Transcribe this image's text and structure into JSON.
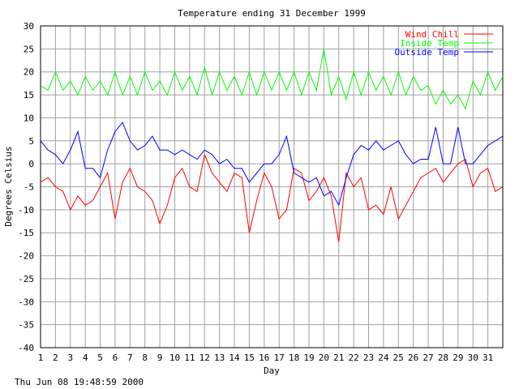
{
  "chart_data": {
    "type": "line",
    "title": "Temperature ending 31 December 1999",
    "xlabel": "Day",
    "ylabel": "Degrees Celsius",
    "xlim": [
      1,
      32
    ],
    "ylim": [
      -40,
      30
    ],
    "grid": true,
    "legend_position": "top-right",
    "x_ticks": [
      "1",
      "2",
      "3",
      "4",
      "5",
      "6",
      "7",
      "8",
      "9",
      "10",
      "11",
      "12",
      "13",
      "14",
      "15",
      "16",
      "17",
      "18",
      "19",
      "20",
      "21",
      "22",
      "23",
      "24",
      "25",
      "26",
      "27",
      "28",
      "29",
      "30",
      "31"
    ],
    "y_ticks": [
      30,
      25,
      20,
      15,
      10,
      5,
      0,
      -5,
      -10,
      -15,
      -20,
      -25,
      -30,
      -35,
      -40
    ],
    "series": [
      {
        "name": "Wind Chill",
        "color": "#ff0000",
        "x": [
          1.0,
          1.5,
          2.0,
          2.5,
          3.0,
          3.5,
          4.0,
          4.5,
          5.0,
          5.5,
          6.0,
          6.5,
          7.0,
          7.5,
          8.0,
          8.5,
          9.0,
          9.5,
          10.0,
          10.5,
          11.0,
          11.5,
          12.0,
          12.5,
          13.0,
          13.5,
          14.0,
          14.5,
          15.0,
          15.5,
          16.0,
          16.5,
          17.0,
          17.5,
          18.0,
          18.5,
          19.0,
          19.5,
          20.0,
          20.5,
          21.0,
          21.5,
          22.0,
          22.5,
          23.0,
          23.5,
          24.0,
          24.5,
          25.0,
          25.5,
          26.0,
          26.5,
          27.0,
          27.5,
          28.0,
          28.5,
          29.0,
          29.5,
          30.0,
          30.5,
          31.0,
          31.5,
          32.0
        ],
        "y": [
          -4,
          -3,
          -5,
          -6,
          -10,
          -7,
          -9,
          -8,
          -5,
          -2,
          -12,
          -4,
          -1,
          -5,
          -6,
          -8,
          -13,
          -9,
          -3,
          -1,
          -5,
          -6,
          2,
          -2,
          -4,
          -6,
          -2,
          -3,
          -15,
          -8,
          -2,
          -5,
          -12,
          -10,
          -1,
          -2,
          -8,
          -6,
          -3,
          -7,
          -17,
          -2,
          -5,
          -3,
          -10,
          -9,
          -11,
          -5,
          -12,
          -9,
          -6,
          -3,
          -2,
          -1,
          -4,
          -2,
          0,
          1,
          -5,
          -2,
          -1,
          -6,
          -5
        ]
      },
      {
        "name": "Inside Temp",
        "color": "#00ff00",
        "x": [
          1.0,
          1.5,
          2.0,
          2.5,
          3.0,
          3.5,
          4.0,
          4.5,
          5.0,
          5.5,
          6.0,
          6.5,
          7.0,
          7.5,
          8.0,
          8.5,
          9.0,
          9.5,
          10.0,
          10.5,
          11.0,
          11.5,
          12.0,
          12.5,
          13.0,
          13.5,
          14.0,
          14.5,
          15.0,
          15.5,
          16.0,
          16.5,
          17.0,
          17.5,
          18.0,
          18.5,
          19.0,
          19.5,
          20.0,
          20.5,
          21.0,
          21.5,
          22.0,
          22.5,
          23.0,
          23.5,
          24.0,
          24.5,
          25.0,
          25.5,
          26.0,
          26.5,
          27.0,
          27.5,
          28.0,
          28.5,
          29.0,
          29.5,
          30.0,
          30.5,
          31.0,
          31.5,
          32.0
        ],
        "y": [
          17,
          16,
          20,
          16,
          18,
          15,
          19,
          16,
          18,
          15,
          20,
          15,
          19,
          15,
          20,
          16,
          18,
          15,
          20,
          16,
          19,
          15,
          21,
          15,
          20,
          16,
          19,
          15,
          20,
          15,
          20,
          16,
          20,
          16,
          20,
          15,
          20,
          16,
          25,
          15,
          19,
          14,
          20,
          15,
          20,
          16,
          19,
          15,
          20,
          15,
          19,
          16,
          17,
          13,
          16,
          13,
          15,
          12,
          18,
          15,
          20,
          16,
          19
        ]
      },
      {
        "name": "Outside Temp",
        "color": "#0000ff",
        "x": [
          1.0,
          1.5,
          2.0,
          2.5,
          3.0,
          3.5,
          4.0,
          4.5,
          5.0,
          5.5,
          6.0,
          6.5,
          7.0,
          7.5,
          8.0,
          8.5,
          9.0,
          9.5,
          10.0,
          10.5,
          11.0,
          11.5,
          12.0,
          12.5,
          13.0,
          13.5,
          14.0,
          14.5,
          15.0,
          15.5,
          16.0,
          16.5,
          17.0,
          17.5,
          18.0,
          18.5,
          19.0,
          19.5,
          20.0,
          20.5,
          21.0,
          21.5,
          22.0,
          22.5,
          23.0,
          23.5,
          24.0,
          24.5,
          25.0,
          25.5,
          26.0,
          26.5,
          27.0,
          27.5,
          28.0,
          28.5,
          29.0,
          29.5,
          30.0,
          30.5,
          31.0,
          31.5,
          32.0
        ],
        "y": [
          5,
          3,
          2,
          0,
          3,
          7,
          -1,
          -1,
          -3,
          3,
          7,
          9,
          5,
          3,
          4,
          6,
          3,
          3,
          2,
          3,
          2,
          1,
          3,
          2,
          0,
          1,
          -1,
          -1,
          -4,
          -2,
          0,
          0,
          2,
          6,
          -2,
          -3,
          -4,
          -3,
          -7,
          -6,
          -9,
          -3,
          2,
          4,
          3,
          5,
          3,
          4,
          5,
          2,
          0,
          1,
          1,
          8,
          0,
          0,
          8,
          0,
          0,
          2,
          4,
          5,
          6
        ]
      }
    ]
  },
  "footer": {
    "timestamp": "Thu Jun 08 19:48:59 2000"
  }
}
